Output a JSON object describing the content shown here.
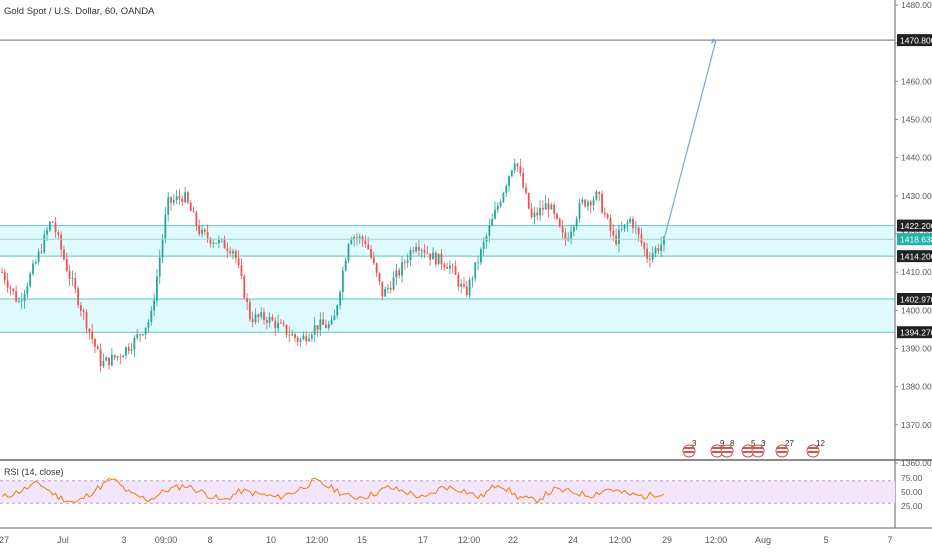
{
  "header": {
    "title": "Gold Spot / U.S. Dollar, 60, OANDA"
  },
  "rsi": {
    "label": "RSI (14, close)",
    "levels": [
      "75.00",
      "50.00",
      "25.00"
    ]
  },
  "price_axis": {
    "ticks": [
      "1480.000",
      "1470.000",
      "1460.000",
      "1450.000",
      "1440.000",
      "1430.000",
      "1420.000",
      "1410.000",
      "1400.000",
      "1390.000",
      "1380.000",
      "1370.000",
      "1360.000"
    ],
    "badges": [
      {
        "text": "1470.800",
        "value": 1470.8,
        "style": "dark"
      },
      {
        "text": "1422.200",
        "value": 1422.2,
        "style": "dark"
      },
      {
        "text": "1418.638",
        "value": 1418.638,
        "style": "teal"
      },
      {
        "text": "1414.200",
        "value": 1414.2,
        "style": "dark"
      },
      {
        "text": "1402.970",
        "value": 1402.97,
        "style": "dark"
      },
      {
        "text": "1394.270",
        "value": 1394.27,
        "style": "dark"
      }
    ]
  },
  "time_axis": [
    "27",
    "Jul",
    "3",
    "09:00",
    "8",
    "10",
    "12:00",
    "15",
    "17",
    "12:00",
    "22",
    "24",
    "12:00",
    "29",
    "12:00",
    "Aug",
    "5",
    "7"
  ],
  "events": [
    "3",
    "9",
    "8",
    "5",
    "3",
    "27",
    "12"
  ],
  "colors": {
    "up": "#26a69a",
    "down": "#ef5350",
    "zone": "#e0fbfd",
    "zoneLine": "#5fc7c2",
    "rsiLine": "#f57c00",
    "rsiBand": "#f3e5fb",
    "projection": "#7aa7d6"
  },
  "chart_data": {
    "type": "candlestick",
    "title": "Gold Spot / U.S. Dollar, 60, OANDA",
    "ylim": [
      1360,
      1480
    ],
    "zones": [
      [
        1414.2,
        1422.2
      ],
      [
        1394.27,
        1402.97
      ]
    ],
    "levels": [
      1470.8,
      1418.638
    ],
    "projection": {
      "from": 1418.6,
      "to": 1470.8
    },
    "anchors": [
      [
        1410,
        1405
      ],
      [
        1402,
        1407
      ],
      [
        1412,
        1420
      ],
      [
        1424,
        1416
      ],
      [
        1410,
        1406
      ],
      [
        1398,
        1393
      ],
      [
        1386,
        1391
      ],
      [
        1388,
        1396
      ],
      [
        1392,
        1394
      ],
      [
        1398,
        1410
      ],
      [
        1428,
        1436
      ],
      [
        1430,
        1418
      ],
      [
        1420,
        1414
      ],
      [
        1418,
        1421
      ],
      [
        1416,
        1412
      ],
      [
        1398,
        1392
      ],
      [
        1398,
        1402
      ],
      [
        1395,
        1392
      ],
      [
        1392,
        1394
      ],
      [
        1396,
        1394
      ],
      [
        1396,
        1402
      ],
      [
        1420,
        1425
      ],
      [
        1418,
        1410
      ],
      [
        1404,
        1406
      ],
      [
        1410,
        1416
      ],
      [
        1418,
        1412
      ],
      [
        1414,
        1410
      ],
      [
        1412,
        1408
      ],
      [
        1404,
        1402
      ],
      [
        1416,
        1422
      ],
      [
        1428,
        1447
      ],
      [
        1440,
        1438
      ],
      [
        1424,
        1426
      ],
      [
        1428,
        1426
      ],
      [
        1418,
        1424
      ],
      [
        1428,
        1426
      ],
      [
        1430,
        1424
      ],
      [
        1418,
        1416
      ],
      [
        1424,
        1418
      ],
      [
        1414,
        1419
      ],
      [
        1418,
        1417
      ]
    ],
    "rsi_range": [
      0,
      100
    ],
    "rsi_anchors": [
      40,
      52,
      66,
      42,
      30,
      52,
      74,
      46,
      36,
      54,
      62,
      48,
      34,
      52,
      46,
      40,
      52,
      70,
      56,
      40,
      44,
      58,
      50,
      38,
      60,
      54,
      40,
      66,
      42,
      34,
      54,
      50,
      44,
      56,
      46,
      42,
      50
    ]
  }
}
